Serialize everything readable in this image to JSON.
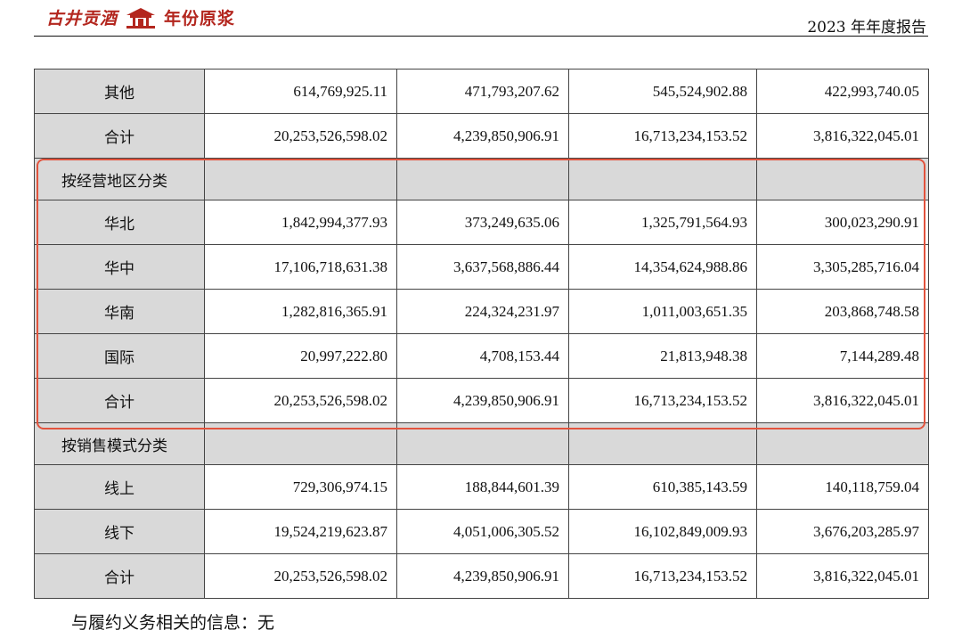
{
  "header": {
    "brand_name": "古井贡酒",
    "brand_sub": "年份原浆",
    "report_title": "2023 年年度报告",
    "accent_color": "#b3261e"
  },
  "table": {
    "rows": [
      {
        "type": "data",
        "label": "其他",
        "values": [
          "614,769,925.11",
          "471,793,207.62",
          "545,524,902.88",
          "422,993,740.05"
        ]
      },
      {
        "type": "data",
        "label": "合计",
        "values": [
          "20,253,526,598.02",
          "4,239,850,906.91",
          "16,713,234,153.52",
          "3,816,322,045.01"
        ]
      },
      {
        "type": "category",
        "label": "按经营地区分类",
        "values": [
          "",
          "",
          "",
          ""
        ]
      },
      {
        "type": "data",
        "label": "华北",
        "values": [
          "1,842,994,377.93",
          "373,249,635.06",
          "1,325,791,564.93",
          "300,023,290.91"
        ]
      },
      {
        "type": "data",
        "label": "华中",
        "values": [
          "17,106,718,631.38",
          "3,637,568,886.44",
          "14,354,624,988.86",
          "3,305,285,716.04"
        ]
      },
      {
        "type": "data",
        "label": "华南",
        "values": [
          "1,282,816,365.91",
          "224,324,231.97",
          "1,011,003,651.35",
          "203,868,748.58"
        ]
      },
      {
        "type": "data",
        "label": "国际",
        "values": [
          "20,997,222.80",
          "4,708,153.44",
          "21,813,948.38",
          "7,144,289.48"
        ]
      },
      {
        "type": "data",
        "label": "合计",
        "values": [
          "20,253,526,598.02",
          "4,239,850,906.91",
          "16,713,234,153.52",
          "3,816,322,045.01"
        ]
      },
      {
        "type": "category",
        "label": "按销售模式分类",
        "values": [
          "",
          "",
          "",
          ""
        ]
      },
      {
        "type": "data",
        "label": "线上",
        "values": [
          "729,306,974.15",
          "188,844,601.39",
          "610,385,143.59",
          "140,118,759.04"
        ]
      },
      {
        "type": "data",
        "label": "线下",
        "values": [
          "19,524,219,623.87",
          "4,051,006,305.52",
          "16,102,849,009.93",
          "3,676,203,285.97"
        ]
      },
      {
        "type": "data",
        "label": "合计",
        "values": [
          "20,253,526,598.02",
          "4,239,850,906.91",
          "16,713,234,153.52",
          "3,816,322,045.01"
        ]
      }
    ]
  },
  "highlight_color": "#e2533d",
  "note": "与履约义务相关的信息：无"
}
